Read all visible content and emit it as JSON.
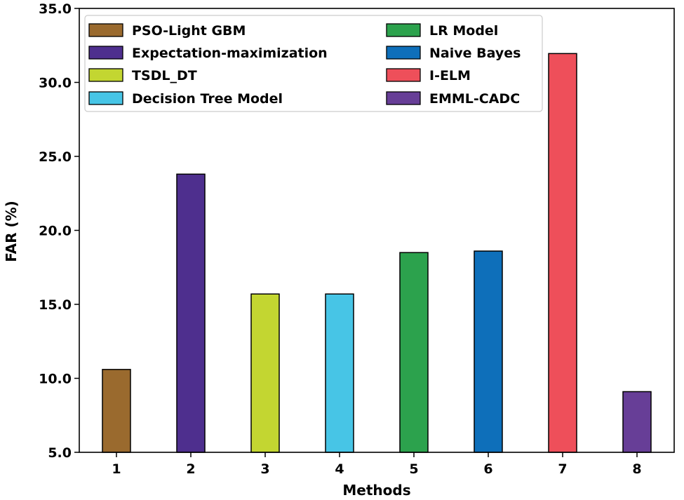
{
  "chart_data": {
    "type": "bar",
    "title": "",
    "xlabel": "Methods",
    "ylabel": "FAR (%)",
    "ylim": [
      5.0,
      35.0
    ],
    "yticks": [
      "5.0",
      "10.0",
      "15.0",
      "20.0",
      "25.0",
      "30.0",
      "35.0"
    ],
    "categories": [
      "1",
      "2",
      "3",
      "4",
      "5",
      "6",
      "7",
      "8"
    ],
    "series": [
      {
        "name": "PSO-Light GBM",
        "category": "1",
        "value": 10.6,
        "color": "#9a6a2e"
      },
      {
        "name": "Expectation-maximization",
        "category": "2",
        "value": 23.8,
        "color": "#4e2f8e"
      },
      {
        "name": "TSDL_DT",
        "category": "3",
        "value": 15.7,
        "color": "#c3d631"
      },
      {
        "name": "Decision Tree Model",
        "category": "4",
        "value": 15.7,
        "color": "#47c5e6"
      },
      {
        "name": "LR Model",
        "category": "5",
        "value": 18.5,
        "color": "#2ca24d"
      },
      {
        "name": "Naive Bayes",
        "category": "6",
        "value": 18.6,
        "color": "#0e6fba"
      },
      {
        "name": "I-ELM",
        "category": "7",
        "value": 31.95,
        "color": "#ee4f5a"
      },
      {
        "name": "EMML-CADC",
        "category": "8",
        "value": 9.1,
        "color": "#673e97"
      }
    ],
    "legend_placement": "top"
  }
}
